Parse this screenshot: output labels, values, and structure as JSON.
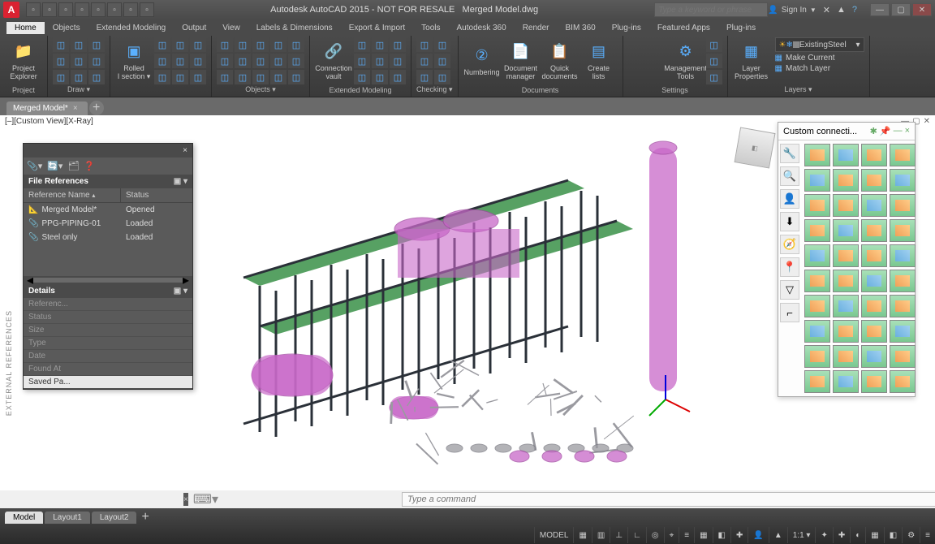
{
  "app": {
    "title": "Autodesk AutoCAD 2015 - NOT FOR RESALE",
    "document": "Merged Model.dwg",
    "search_placeholder": "Type a keyword or phrase",
    "signin": "Sign In"
  },
  "qat_icons": [
    "new",
    "open",
    "save",
    "undo",
    "redo",
    "print",
    "plot",
    "export"
  ],
  "menu_tabs": [
    "Home",
    "Objects",
    "Extended Modeling",
    "Output",
    "View",
    "Labels & Dimensions",
    "Export & Import",
    "Tools",
    "Autodesk 360",
    "Render",
    "BIM 360",
    "Plug-ins",
    "Featured Apps",
    "Plug-ins"
  ],
  "menu_active": 0,
  "ribbon": {
    "panels": [
      {
        "label": "Project",
        "buttons": [
          {
            "l": "Project\nExplorer",
            "c": "#e8b030",
            "g": "📁"
          }
        ]
      },
      {
        "label": "Draw ▾",
        "small": 9,
        "color": "#5ab0ff"
      },
      {
        "label": "",
        "small": 9,
        "color": "#5ab0ff",
        "buttons": [
          {
            "l": "Rolled\nI section ▾",
            "c": "#5ab0ff",
            "g": "▣"
          }
        ]
      },
      {
        "label": "Objects ▾",
        "small": 15,
        "color": "#5ab0ff"
      },
      {
        "label": "Extended Modeling",
        "buttons": [
          {
            "l": "Connection\nvault",
            "c": "#5ab0ff",
            "g": "🔗"
          }
        ],
        "small": 9,
        "color": "#5ab0ff"
      },
      {
        "label": "Checking ▾",
        "small": 6,
        "color": "#5ab0ff"
      },
      {
        "label": "Documents",
        "buttons": [
          {
            "l": "Numbering",
            "c": "#5ab0ff",
            "g": "②"
          },
          {
            "l": "Document\nmanager",
            "c": "#e8b030",
            "g": "📄"
          },
          {
            "l": "Quick\ndocuments",
            "c": "#e8b030",
            "g": "📋"
          },
          {
            "l": "Create\nlists",
            "c": "#5ab0ff",
            "g": "▤"
          }
        ]
      },
      {
        "label": "Settings",
        "buttons": [
          {
            "l": "",
            "c": "#5ab0ff",
            "g": ""
          },
          {
            "l": "Management\nTools",
            "c": "#5ab0ff",
            "g": "⚙"
          }
        ],
        "small": 3
      },
      {
        "label": "Layers ▾",
        "buttons": [
          {
            "l": "Layer\nProperties",
            "c": "#5ab0ff",
            "g": "▦"
          }
        ],
        "layer_controls": true
      }
    ]
  },
  "layer_combo": "ExistingSteel",
  "layer_buttons": [
    "Make Current",
    "Match Layer"
  ],
  "doc_tabs": [
    "Merged Model*"
  ],
  "view_label": "[–][Custom View][X-Ray]",
  "xref": {
    "title": "",
    "section1": "File References",
    "columns": [
      "Reference Name",
      "Status"
    ],
    "rows": [
      {
        "icon": "📐",
        "name": "Merged Model*",
        "status": "Opened"
      },
      {
        "icon": "📎",
        "name": "PPG-PIPING-01",
        "status": "Loaded"
      },
      {
        "icon": "📎",
        "name": "Steel only",
        "status": "Loaded"
      }
    ],
    "section2": "Details",
    "details": [
      "Referenc...",
      "Status",
      "Size",
      "Type",
      "Date",
      "Found At",
      "Saved Pa..."
    ],
    "vert": "EXTERNAL REFERENCES"
  },
  "palette": {
    "title": "Custom connecti...",
    "side_icons": [
      "🔧",
      "🔍",
      "👤",
      "⬇",
      "🧭",
      "📍",
      "▽",
      "⌐"
    ],
    "cells": 40
  },
  "viewport": {
    "colors": {
      "steel": "#2a3038",
      "steel_hl": "#3a5068",
      "green": "#3a9048",
      "magenta": "#c868c8",
      "magenta_dk": "#a048a0",
      "pipe": "#9a9aa0",
      "pipe_dk": "#787880"
    }
  },
  "cmd": {
    "placeholder": "Type a command"
  },
  "layout_tabs": [
    "Model",
    "Layout1",
    "Layout2"
  ],
  "layout_active": 0,
  "status": {
    "model": "MODEL",
    "scale": "1:1 ▾",
    "icons": [
      "▦",
      "▥",
      "⊥",
      "∟",
      "◎",
      "⌖",
      "≡",
      "▦",
      "◧",
      "✚",
      "👤",
      "▲",
      "⚙",
      "✦",
      "✚",
      "◐",
      "▦",
      "◧",
      "⚙",
      "≡"
    ]
  }
}
